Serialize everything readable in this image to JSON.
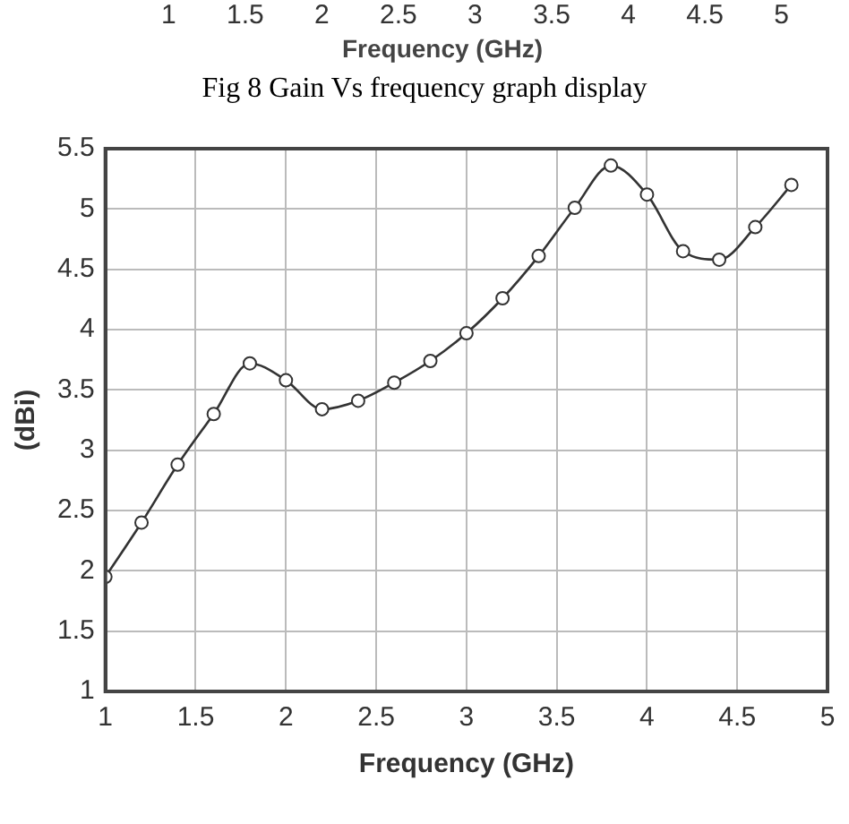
{
  "chart_data": {
    "type": "line",
    "xlabel": "Frequency (GHz)",
    "ylabel": "(dBi)",
    "annotations": [
      "1 1.5 2 2.5 3 3.5 4 4.5 5",
      "Frequency (GHz)",
      "Fig 8 Gain Vs frequency graph display"
    ],
    "x": [
      1,
      1.2,
      1.4,
      1.6,
      1.8,
      2,
      2.2,
      2.4,
      2.6,
      2.8,
      3,
      3.2,
      3.4,
      3.6,
      3.8,
      4,
      4.2,
      4.4,
      4.6,
      4.8
    ],
    "series": [
      {
        "color": "#333333",
        "values": [
          1.95,
          2.4,
          2.88,
          3.3,
          3.72,
          3.58,
          3.34,
          3.41,
          3.56,
          3.74,
          3.97,
          4.26,
          4.61,
          5.01,
          5.36,
          5.12,
          4.65,
          4.58,
          4.85,
          5.2
        ]
      }
    ],
    "xlim": [
      1,
      5
    ],
    "xticks": [
      1,
      1.5,
      2,
      2.5,
      3,
      3.5,
      4,
      4.5,
      5
    ],
    "ylim": [
      1,
      5.5
    ],
    "yticks": [
      1,
      1.5,
      2,
      2.5,
      3,
      3.5,
      4,
      4.5,
      5,
      5.5
    ],
    "grid": true,
    "marker": "circle",
    "line_style": "solid",
    "legend": false
  }
}
